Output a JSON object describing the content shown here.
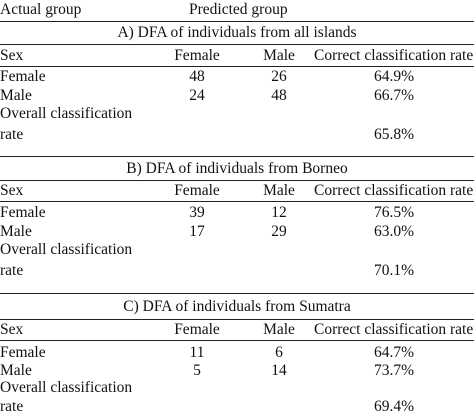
{
  "header": {
    "actual_group": "Actual group",
    "predicted_group": "Predicted group"
  },
  "columns": {
    "sex": "Sex",
    "female": "Female",
    "male": "Male",
    "rate": "Correct classification rate"
  },
  "rows": {
    "female": "Female",
    "male": "Male",
    "overall_1": "Overall classification",
    "overall_2": "rate"
  },
  "sections": [
    {
      "title": "A) DFA of individuals from all islands",
      "female": {
        "female": "48",
        "male": "26",
        "rate": "64.9%"
      },
      "male": {
        "female": "24",
        "male": "48",
        "rate": "66.7%"
      },
      "overall": "65.8%"
    },
    {
      "title": "B) DFA of individuals from Borneo",
      "female": {
        "female": "39",
        "male": "12",
        "rate": "76.5%"
      },
      "male": {
        "female": "17",
        "male": "29",
        "rate": "63.0%"
      },
      "overall": "70.1%"
    },
    {
      "title": "C) DFA of individuals from Sumatra",
      "female": {
        "female": "11",
        "male": "6",
        "rate": "64.7%"
      },
      "male": {
        "female": "5",
        "male": "14",
        "rate": "73.7%"
      },
      "overall": "69.4%"
    }
  ]
}
